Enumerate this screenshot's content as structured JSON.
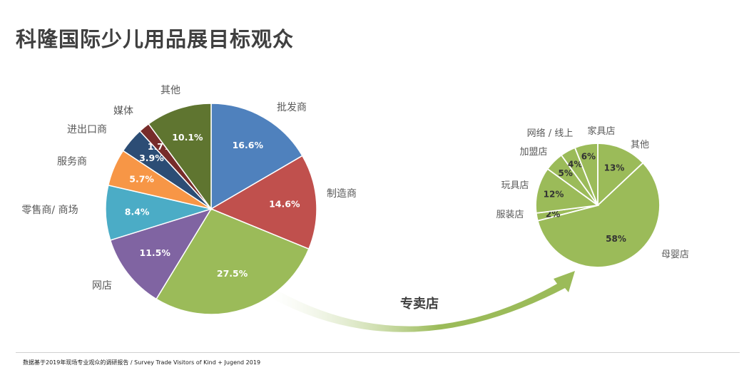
{
  "title": "科隆国际少儿用品展目标观众",
  "footer": "数据基于2019年现场专业观众的调研报告 / Survey Trade Visitors of Kind + Jugend 2019",
  "arrow_label": "专卖店",
  "colors": {
    "title": "#404040",
    "slice_border": "#ffffff",
    "value_text": "#ffffff",
    "sub_value_text": "#333333",
    "category_text": "#595959",
    "arrow_start": "#ffffff",
    "arrow_end": "#9bbb59"
  },
  "chart_data": [
    {
      "type": "pie",
      "title": "",
      "start_angle": "12 o'clock",
      "direction": "clockwise",
      "categories": [
        "批发商",
        "制造商",
        "专卖店",
        "网店",
        "零售商/ 商场",
        "服务商",
        "进出口商",
        "媒体",
        "其他"
      ],
      "values": [
        16.6,
        14.6,
        27.5,
        11.5,
        8.4,
        5.7,
        3.9,
        1.7,
        10.1
      ],
      "value_labels": [
        "16.6%",
        "14.6%",
        "27.5%",
        "11.5%",
        "8.4%",
        "5.7%",
        "3.9%",
        "1.7%",
        "10.1%"
      ],
      "slice_category_labels": [
        "批发商",
        "制造商",
        "",
        "网店",
        "零售商/ 商场",
        "服务商",
        "进出口商",
        "媒体",
        "其他"
      ],
      "colors": [
        "#4f81bd",
        "#c0504d",
        "#9bbb59",
        "#8064a2",
        "#4bacc6",
        "#f79646",
        "#2c4d75",
        "#772c2a",
        "#5f7530"
      ]
    },
    {
      "type": "pie",
      "title": "",
      "start_angle": "12 o'clock",
      "direction": "clockwise",
      "categories": [
        "其他",
        "母婴店",
        "服装店",
        "玩具店",
        "加盟店",
        "网络 / 线上",
        "家具店"
      ],
      "values": [
        13,
        58,
        2,
        12,
        5,
        4,
        6
      ],
      "value_labels": [
        "13%",
        "58%",
        "2%",
        "12%",
        "5%",
        "4%",
        "6%"
      ],
      "colors": [
        "#9bbb59",
        "#9bbb59",
        "#9bbb59",
        "#9bbb59",
        "#9bbb59",
        "#9bbb59",
        "#9bbb59"
      ]
    }
  ]
}
